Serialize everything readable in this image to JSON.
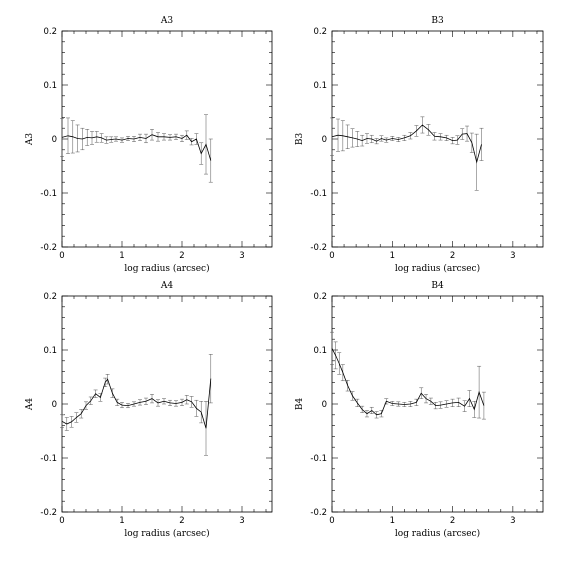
{
  "chart_data": [
    {
      "type": "line",
      "title": "A3",
      "xlabel": "log radius (arcsec)",
      "ylabel": "A3",
      "xlim": [
        0,
        3.5
      ],
      "ylim": [
        -0.2,
        0.2
      ],
      "xticks": [
        "0",
        "1",
        "2",
        "3"
      ],
      "yticks": [
        "0.2",
        "0.1",
        "0",
        "-0.1",
        "-0.2"
      ],
      "grid": false,
      "x": [
        0.0,
        0.1,
        0.18,
        0.26,
        0.34,
        0.42,
        0.5,
        0.58,
        0.66,
        0.74,
        0.82,
        0.9,
        1.0,
        1.1,
        1.2,
        1.3,
        1.4,
        1.5,
        1.6,
        1.7,
        1.8,
        1.9,
        2.0,
        2.08,
        2.16,
        2.24,
        2.32,
        2.4,
        2.48
      ],
      "y": [
        0.003,
        0.006,
        0.004,
        0.001,
        0.0,
        0.003,
        0.002,
        0.004,
        0.002,
        -0.002,
        -0.001,
        0.0,
        -0.002,
        0.001,
        0.0,
        0.003,
        0.001,
        0.008,
        0.004,
        0.004,
        0.003,
        0.004,
        0.001,
        0.007,
        -0.005,
        0.0,
        -0.027,
        -0.01,
        -0.04
      ],
      "err": [
        0.035,
        0.033,
        0.03,
        0.025,
        0.02,
        0.015,
        0.012,
        0.01,
        0.008,
        0.006,
        0.005,
        0.004,
        0.004,
        0.004,
        0.005,
        0.006,
        0.008,
        0.01,
        0.008,
        0.006,
        0.005,
        0.005,
        0.006,
        0.008,
        0.006,
        0.01,
        0.02,
        0.055,
        0.04
      ]
    },
    {
      "type": "line",
      "title": "B3",
      "xlabel": "log radius (arcsec)",
      "ylabel": "B3",
      "xlim": [
        0,
        3.5
      ],
      "ylim": [
        -0.2,
        0.2
      ],
      "xticks": [
        "0",
        "1",
        "2",
        "3"
      ],
      "yticks": [
        "0.2",
        "0.1",
        "0",
        "-0.1",
        "-0.2"
      ],
      "grid": false,
      "x": [
        0.0,
        0.1,
        0.18,
        0.26,
        0.34,
        0.42,
        0.5,
        0.58,
        0.66,
        0.74,
        0.82,
        0.9,
        1.0,
        1.1,
        1.2,
        1.3,
        1.4,
        1.5,
        1.6,
        1.7,
        1.8,
        1.9,
        2.0,
        2.08,
        2.16,
        2.24,
        2.32,
        2.4,
        2.48
      ],
      "y": [
        0.004,
        0.007,
        0.006,
        0.004,
        0.002,
        0.0,
        -0.003,
        0.001,
        0.0,
        -0.004,
        0.001,
        -0.002,
        0.001,
        -0.001,
        0.002,
        0.006,
        0.015,
        0.026,
        0.017,
        0.005,
        0.004,
        0.002,
        -0.003,
        -0.002,
        0.009,
        0.01,
        -0.007,
        -0.043,
        -0.01
      ],
      "err": [
        0.035,
        0.03,
        0.028,
        0.022,
        0.017,
        0.014,
        0.01,
        0.009,
        0.007,
        0.005,
        0.005,
        0.004,
        0.004,
        0.004,
        0.005,
        0.006,
        0.01,
        0.015,
        0.01,
        0.007,
        0.006,
        0.005,
        0.006,
        0.008,
        0.01,
        0.014,
        0.018,
        0.052,
        0.03
      ]
    },
    {
      "type": "line",
      "title": "A4",
      "xlabel": "log radius (arcsec)",
      "ylabel": "A4",
      "xlim": [
        0,
        3.5
      ],
      "ylim": [
        -0.2,
        0.2
      ],
      "xticks": [
        "0",
        "1",
        "2",
        "3"
      ],
      "yticks": [
        "0.2",
        "0.1",
        "0",
        "-0.1",
        "-0.2"
      ],
      "grid": false,
      "x": [
        0.0,
        0.08,
        0.16,
        0.24,
        0.32,
        0.4,
        0.48,
        0.56,
        0.64,
        0.72,
        0.76,
        0.84,
        0.92,
        1.0,
        1.1,
        1.2,
        1.3,
        1.4,
        1.5,
        1.6,
        1.7,
        1.8,
        1.9,
        2.0,
        2.08,
        2.16,
        2.24,
        2.32,
        2.4,
        2.48
      ],
      "y": [
        -0.032,
        -0.037,
        -0.033,
        -0.025,
        -0.018,
        -0.003,
        0.006,
        0.019,
        0.012,
        0.04,
        0.046,
        0.02,
        0.003,
        -0.002,
        -0.003,
        0.0,
        0.003,
        0.005,
        0.01,
        0.002,
        0.005,
        0.002,
        0.001,
        0.003,
        0.008,
        0.004,
        -0.008,
        -0.015,
        -0.045,
        0.047
      ],
      "err": [
        0.012,
        0.012,
        0.01,
        0.009,
        0.008,
        0.007,
        0.007,
        0.007,
        0.007,
        0.008,
        0.009,
        0.008,
        0.006,
        0.005,
        0.004,
        0.004,
        0.005,
        0.006,
        0.008,
        0.006,
        0.005,
        0.005,
        0.005,
        0.006,
        0.008,
        0.01,
        0.015,
        0.02,
        0.05,
        0.045
      ]
    },
    {
      "type": "line",
      "title": "B4",
      "xlabel": "log radius (arcsec)",
      "ylabel": "B4",
      "xlim": [
        0,
        3.5
      ],
      "ylim": [
        -0.2,
        0.2
      ],
      "xticks": [
        "0",
        "1",
        "2",
        "3"
      ],
      "yticks": [
        "0.2",
        "0.1",
        "0",
        "-0.1",
        "-0.2"
      ],
      "grid": false,
      "x": [
        0.0,
        0.06,
        0.12,
        0.18,
        0.26,
        0.34,
        0.42,
        0.5,
        0.58,
        0.66,
        0.74,
        0.82,
        0.9,
        1.0,
        1.1,
        1.2,
        1.3,
        1.4,
        1.48,
        1.56,
        1.64,
        1.72,
        1.8,
        1.9,
        2.0,
        2.1,
        2.2,
        2.28,
        2.36,
        2.44,
        2.52
      ],
      "y": [
        0.103,
        0.09,
        0.075,
        0.058,
        0.034,
        0.015,
        0.002,
        -0.01,
        -0.018,
        -0.012,
        -0.02,
        -0.018,
        0.005,
        0.001,
        0.0,
        -0.001,
        0.0,
        0.003,
        0.02,
        0.01,
        0.005,
        -0.003,
        -0.002,
        0.0,
        0.002,
        0.003,
        -0.004,
        0.01,
        -0.01,
        0.022,
        -0.003
      ],
      "err": [
        0.03,
        0.025,
        0.02,
        0.015,
        0.01,
        0.008,
        0.007,
        0.006,
        0.006,
        0.006,
        0.006,
        0.006,
        0.005,
        0.004,
        0.004,
        0.004,
        0.005,
        0.006,
        0.01,
        0.008,
        0.006,
        0.006,
        0.006,
        0.006,
        0.007,
        0.008,
        0.01,
        0.015,
        0.015,
        0.048,
        0.025
      ]
    }
  ]
}
